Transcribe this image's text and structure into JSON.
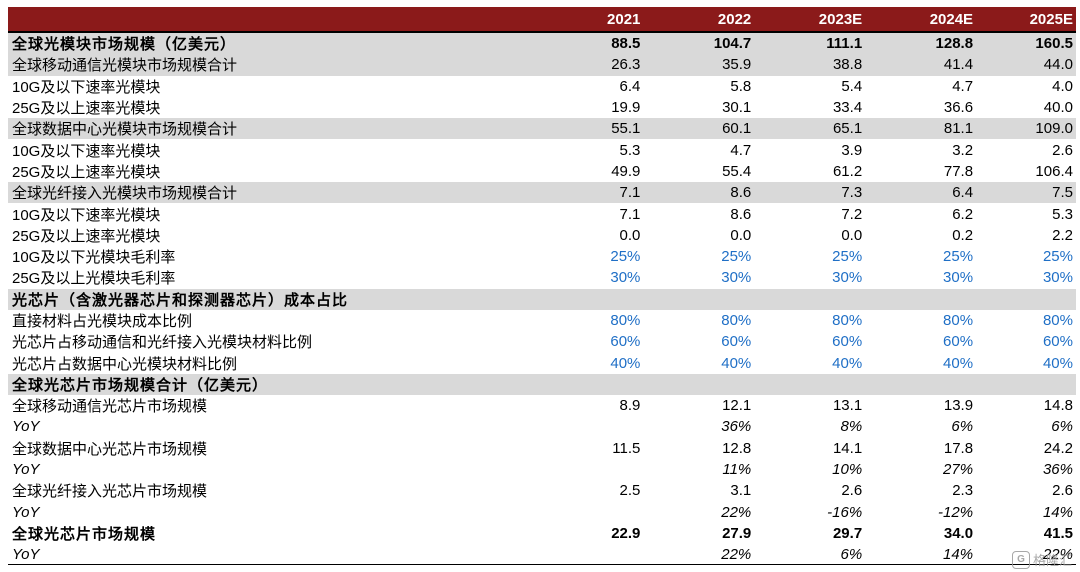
{
  "header": {
    "label": "",
    "years": [
      "2021",
      "2022",
      "2023E",
      "2024E",
      "2025E"
    ]
  },
  "rows": [
    {
      "label": "全球光模块市场规模（亿美元）",
      "values": [
        "88.5",
        "104.7",
        "111.1",
        "128.8",
        "160.5"
      ],
      "style": "gray bold sec"
    },
    {
      "label": "全球移动通信光模块市场规模合计",
      "values": [
        "26.3",
        "35.9",
        "38.8",
        "41.4",
        "44.0"
      ],
      "style": "gray"
    },
    {
      "label": "10G及以下速率光模块",
      "values": [
        "6.4",
        "5.8",
        "5.4",
        "4.7",
        "4.0"
      ],
      "style": ""
    },
    {
      "label": "25G及以上速率光模块",
      "values": [
        "19.9",
        "30.1",
        "33.4",
        "36.6",
        "40.0"
      ],
      "style": ""
    },
    {
      "label": "全球数据中心光模块市场规模合计",
      "values": [
        "55.1",
        "60.1",
        "65.1",
        "81.1",
        "109.0"
      ],
      "style": "gray"
    },
    {
      "label": "10G及以下速率光模块",
      "values": [
        "5.3",
        "4.7",
        "3.9",
        "3.2",
        "2.6"
      ],
      "style": ""
    },
    {
      "label": "25G及以上速率光模块",
      "values": [
        "49.9",
        "55.4",
        "61.2",
        "77.8",
        "106.4"
      ],
      "style": ""
    },
    {
      "label": "全球光纤接入光模块市场规模合计",
      "values": [
        "7.1",
        "8.6",
        "7.3",
        "6.4",
        "7.5"
      ],
      "style": "gray"
    },
    {
      "label": "10G及以下速率光模块",
      "values": [
        "7.1",
        "8.6",
        "7.2",
        "6.2",
        "5.3"
      ],
      "style": ""
    },
    {
      "label": "25G及以上速率光模块",
      "values": [
        "0.0",
        "0.0",
        "0.0",
        "0.2",
        "2.2"
      ],
      "style": ""
    },
    {
      "label": "10G及以下光模块毛利率",
      "values": [
        "25%",
        "25%",
        "25%",
        "25%",
        "25%"
      ],
      "style": "blue"
    },
    {
      "label": "25G及以上光模块毛利率",
      "values": [
        "30%",
        "30%",
        "30%",
        "30%",
        "30%"
      ],
      "style": "blue"
    },
    {
      "label": "光芯片（含激光器芯片和探测器芯片）成本占比",
      "values": [
        "",
        "",
        "",
        "",
        ""
      ],
      "style": "gray bold sec"
    },
    {
      "label": "直接材料占光模块成本比例",
      "values": [
        "80%",
        "80%",
        "80%",
        "80%",
        "80%"
      ],
      "style": "blue"
    },
    {
      "label": "光芯片占移动通信和光纤接入光模块材料比例",
      "values": [
        "60%",
        "60%",
        "60%",
        "60%",
        "60%"
      ],
      "style": "blue"
    },
    {
      "label": "光芯片占数据中心光模块材料比例",
      "values": [
        "40%",
        "40%",
        "40%",
        "40%",
        "40%"
      ],
      "style": "blue"
    },
    {
      "label": "全球光芯片市场规模合计（亿美元）",
      "values": [
        "",
        "",
        "",
        "",
        ""
      ],
      "style": "gray bold sec"
    },
    {
      "label": "全球移动通信光芯片市场规模",
      "values": [
        "8.9",
        "12.1",
        "13.1",
        "13.9",
        "14.8"
      ],
      "style": ""
    },
    {
      "label": "YoY",
      "values": [
        "",
        "36%",
        "8%",
        "6%",
        "6%"
      ],
      "style": "yoy"
    },
    {
      "label": "全球数据中心光芯片市场规模",
      "values": [
        "11.5",
        "12.8",
        "14.1",
        "17.8",
        "24.2"
      ],
      "style": ""
    },
    {
      "label": "YoY",
      "values": [
        "",
        "11%",
        "10%",
        "27%",
        "36%"
      ],
      "style": "yoy"
    },
    {
      "label": "全球光纤接入光芯片市场规模",
      "values": [
        "2.5",
        "3.1",
        "2.6",
        "2.3",
        "2.6"
      ],
      "style": ""
    },
    {
      "label": "YoY",
      "values": [
        "",
        "22%",
        "-16%",
        "-12%",
        "14%"
      ],
      "style": "yoy"
    },
    {
      "label": "全球光芯片市场规模",
      "values": [
        "22.9",
        "27.9",
        "29.7",
        "34.0",
        "41.5"
      ],
      "style": "bold sec"
    },
    {
      "label": "YoY",
      "values": [
        "",
        "22%",
        "6%",
        "14%",
        "22%"
      ],
      "style": "yoy"
    }
  ],
  "watermark": {
    "text": "格隆汇",
    "icon": "gelonghui-logo-icon"
  },
  "colors": {
    "header_bg": "#8b1a1a",
    "section_bg": "#d9d9d9",
    "percent_text": "#1f6fc6"
  }
}
